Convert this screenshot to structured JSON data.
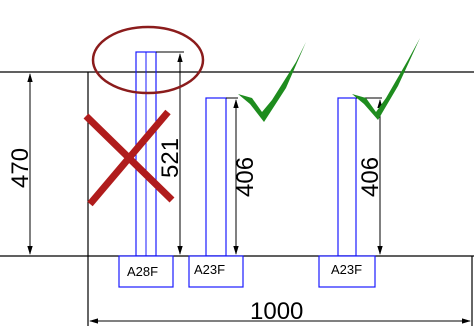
{
  "drawing": {
    "dimensions": {
      "height_left": "470",
      "width_bottom": "1000",
      "post_1_height": "521",
      "post_2_height": "406",
      "post_3_height": "406"
    },
    "labels": {
      "post_1": "A28F",
      "post_2": "A23F",
      "post_3": "A23F"
    },
    "marks": {
      "post_1": "cross-mark",
      "post_2": "check-mark",
      "post_3": "check-mark",
      "highlight": "circle-highlight"
    },
    "colors": {
      "outline": "#000000",
      "post": "#1a1aff",
      "check": "#1e8c1e",
      "cross": "#b01c1c",
      "highlight": "#8b1c1c"
    }
  }
}
